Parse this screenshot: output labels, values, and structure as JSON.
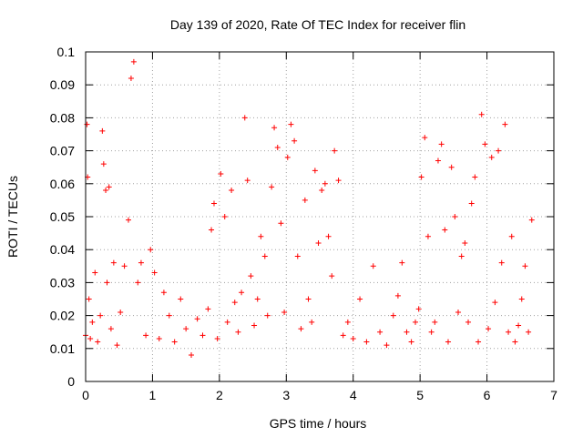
{
  "chart_data": {
    "type": "scatter",
    "title": "Day 139 of 2020, Rate Of TEC Index for receiver flin",
    "xlabel": "GPS time / hours",
    "ylabel": "ROTI / TECUs",
    "xlim": [
      0,
      7
    ],
    "ylim": [
      0,
      0.1
    ],
    "xticks": [
      0,
      1,
      2,
      3,
      4,
      5,
      6,
      7
    ],
    "yticks": [
      0,
      0.01,
      0.02,
      0.03,
      0.04,
      0.05,
      0.06,
      0.07,
      0.08,
      0.09,
      0.1
    ],
    "xtick_labels": [
      "0",
      "1",
      "2",
      "3",
      "4",
      "5",
      "6",
      "7"
    ],
    "ytick_labels": [
      "0",
      "0.01",
      "0.02",
      "0.03",
      "0.04",
      "0.05",
      "0.06",
      "0.07",
      "0.08",
      "0.09",
      "0.1"
    ],
    "grid": true,
    "marker": "+",
    "marker_color": "#ff0000",
    "series": [
      {
        "name": "ROTI",
        "x": [
          0.0,
          0.02,
          0.03,
          0.05,
          0.07,
          0.1,
          0.14,
          0.18,
          0.22,
          0.25,
          0.27,
          0.3,
          0.32,
          0.35,
          0.38,
          0.42,
          0.47,
          0.52,
          0.58,
          0.64,
          0.68,
          0.72,
          0.78,
          0.83,
          0.9,
          0.97,
          1.03,
          1.1,
          1.17,
          1.25,
          1.33,
          1.42,
          1.5,
          1.58,
          1.67,
          1.75,
          1.83,
          1.88,
          1.92,
          1.97,
          2.02,
          2.08,
          2.12,
          2.18,
          2.23,
          2.28,
          2.33,
          2.38,
          2.42,
          2.47,
          2.52,
          2.57,
          2.62,
          2.68,
          2.72,
          2.78,
          2.82,
          2.87,
          2.92,
          2.97,
          3.02,
          3.07,
          3.12,
          3.17,
          3.22,
          3.28,
          3.33,
          3.38,
          3.43,
          3.48,
          3.53,
          3.58,
          3.63,
          3.68,
          3.72,
          3.78,
          3.85,
          3.92,
          4.0,
          4.1,
          4.2,
          4.3,
          4.4,
          4.5,
          4.6,
          4.67,
          4.73,
          4.8,
          4.87,
          4.93,
          4.98,
          5.02,
          5.07,
          5.12,
          5.17,
          5.22,
          5.27,
          5.32,
          5.37,
          5.42,
          5.47,
          5.52,
          5.57,
          5.62,
          5.67,
          5.72,
          5.77,
          5.82,
          5.87,
          5.92,
          5.97,
          6.02,
          6.07,
          6.12,
          6.17,
          6.22,
          6.27,
          6.32,
          6.37,
          6.42,
          6.47,
          6.52,
          6.57,
          6.62,
          6.67
        ],
        "y": [
          0.014,
          0.078,
          0.062,
          0.025,
          0.013,
          0.018,
          0.033,
          0.012,
          0.02,
          0.076,
          0.066,
          0.058,
          0.03,
          0.059,
          0.016,
          0.036,
          0.011,
          0.021,
          0.035,
          0.049,
          0.092,
          0.097,
          0.03,
          0.036,
          0.014,
          0.04,
          0.033,
          0.013,
          0.027,
          0.02,
          0.012,
          0.025,
          0.016,
          0.008,
          0.019,
          0.014,
          0.022,
          0.046,
          0.054,
          0.013,
          0.063,
          0.05,
          0.018,
          0.058,
          0.024,
          0.015,
          0.027,
          0.08,
          0.061,
          0.032,
          0.017,
          0.025,
          0.044,
          0.038,
          0.02,
          0.059,
          0.077,
          0.071,
          0.048,
          0.021,
          0.068,
          0.078,
          0.073,
          0.038,
          0.016,
          0.055,
          0.025,
          0.018,
          0.064,
          0.042,
          0.058,
          0.06,
          0.044,
          0.032,
          0.07,
          0.061,
          0.014,
          0.018,
          0.013,
          0.025,
          0.012,
          0.035,
          0.015,
          0.011,
          0.02,
          0.026,
          0.036,
          0.015,
          0.012,
          0.018,
          0.022,
          0.062,
          0.074,
          0.044,
          0.015,
          0.018,
          0.067,
          0.072,
          0.046,
          0.012,
          0.065,
          0.05,
          0.021,
          0.038,
          0.042,
          0.018,
          0.054,
          0.062,
          0.012,
          0.081,
          0.072,
          0.016,
          0.068,
          0.024,
          0.07,
          0.036,
          0.078,
          0.015,
          0.044,
          0.012,
          0.017,
          0.025,
          0.035,
          0.015,
          0.049
        ]
      }
    ]
  }
}
